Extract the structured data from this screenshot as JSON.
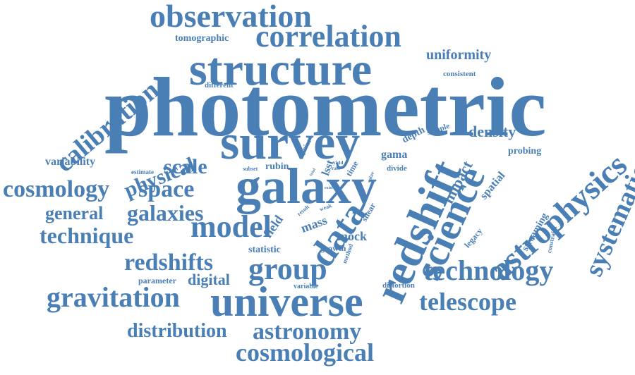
{
  "word_color": "#4a7fb5",
  "background_color": "#ffffff",
  "words": [
    {
      "text": "photometric"
    },
    {
      "text": "universe"
    },
    {
      "text": "galaxy"
    },
    {
      "text": "survey"
    },
    {
      "text": "structure"
    },
    {
      "text": "redshift"
    },
    {
      "text": "science"
    },
    {
      "text": "correlation"
    },
    {
      "text": "observation"
    },
    {
      "text": "data"
    },
    {
      "text": "model"
    },
    {
      "text": "group"
    },
    {
      "text": "astrophysics"
    },
    {
      "text": "technology"
    },
    {
      "text": "astronomy"
    },
    {
      "text": "cosmological"
    },
    {
      "text": "gravitation"
    },
    {
      "text": "telescope"
    },
    {
      "text": "cosmology"
    },
    {
      "text": "space"
    },
    {
      "text": "galaxies"
    },
    {
      "text": "technique"
    },
    {
      "text": "redshifts"
    },
    {
      "text": "scale"
    },
    {
      "text": "calibration"
    },
    {
      "text": "systematic"
    },
    {
      "text": "astrophysics"
    },
    {
      "text": "physical"
    },
    {
      "text": "distribution"
    },
    {
      "text": "general"
    },
    {
      "text": "uniformity"
    },
    {
      "text": "density"
    },
    {
      "text": "digital"
    },
    {
      "text": "impact"
    },
    {
      "text": "variability"
    },
    {
      "text": "tomographic"
    },
    {
      "text": "mock"
    },
    {
      "text": "field"
    },
    {
      "text": "mass"
    },
    {
      "text": "statistic"
    },
    {
      "text": "lsst"
    },
    {
      "text": "rubin"
    },
    {
      "text": "gama"
    },
    {
      "text": "depth"
    },
    {
      "text": "spatial"
    },
    {
      "text": "probing"
    },
    {
      "text": "legacy"
    },
    {
      "text": "streaming"
    },
    {
      "text": "growth"
    },
    {
      "text": "parameter"
    },
    {
      "text": "variable"
    },
    {
      "text": "distortion"
    },
    {
      "text": "divide"
    },
    {
      "text": "sample"
    },
    {
      "text": "consistent"
    },
    {
      "text": "different"
    },
    {
      "text": "estimate"
    },
    {
      "text": "subset"
    },
    {
      "text": "time"
    },
    {
      "text": "point"
    },
    {
      "text": "shear"
    },
    {
      "text": "constraint"
    },
    {
      "text": "method"
    },
    {
      "text": "weak"
    },
    {
      "text": "result"
    },
    {
      "text": "yield"
    },
    {
      "text": "rate"
    },
    {
      "text": "total"
    },
    {
      "text": "value"
    },
    {
      "text": "exist"
    }
  ]
}
